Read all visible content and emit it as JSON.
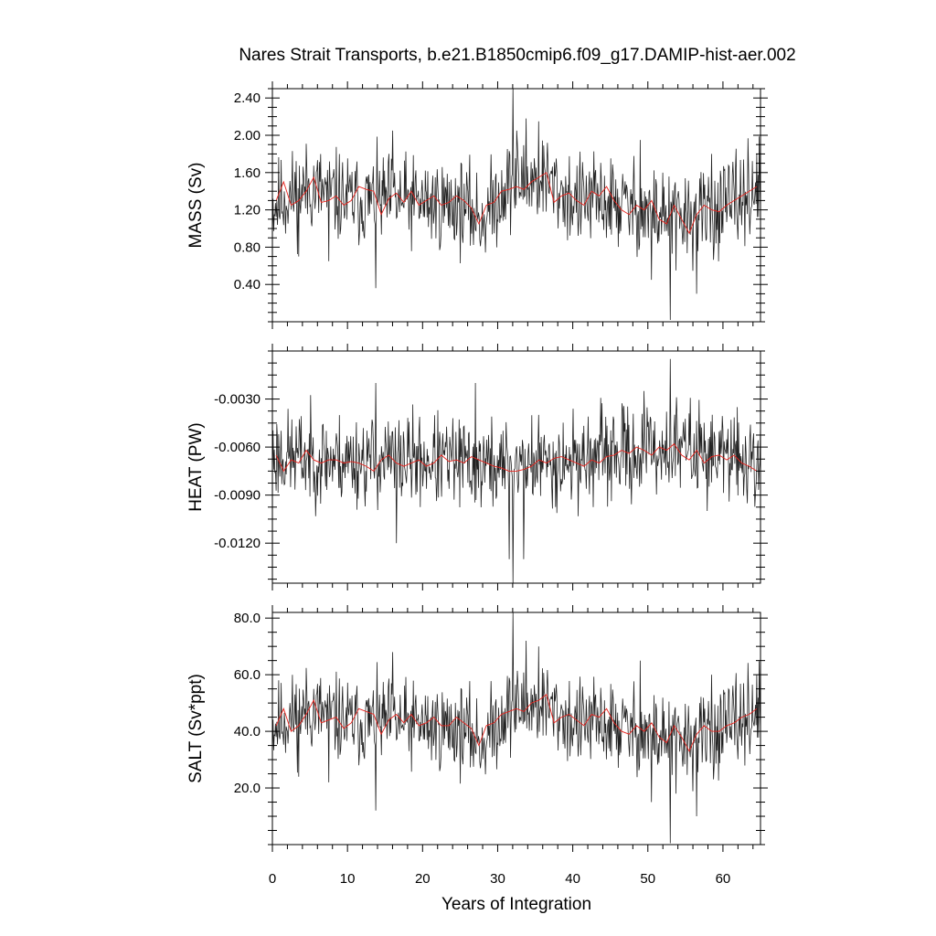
{
  "figure": {
    "title": "Nares Strait Transports, b.e21.B1850cmip6.f09_g17.DAMIP-hist-aer.002"
  },
  "chart_data": [
    {
      "type": "line",
      "title": "Nares Strait Transports, b.e21.B1850cmip6.f09_g17.DAMIP-hist-aer.002",
      "xlabel": "",
      "ylabel": "MASS (Sv)",
      "xlim": [
        0,
        65
      ],
      "ylim": [
        0.0,
        2.5
      ],
      "yticks": [
        0.4,
        0.8,
        1.2,
        1.6,
        2.0,
        2.4
      ],
      "yticklabels": [
        "0.40",
        "0.80",
        "1.20",
        "1.60",
        "2.00",
        "2.40"
      ],
      "monthly": {
        "baseline": [
          [
            0,
            1.25
          ],
          [
            5,
            1.45
          ],
          [
            10,
            1.3
          ],
          [
            15,
            1.3
          ],
          [
            20,
            1.28
          ],
          [
            25,
            1.25
          ],
          [
            28,
            1.1
          ],
          [
            31,
            1.45
          ],
          [
            36,
            1.55
          ],
          [
            40,
            1.3
          ],
          [
            45,
            1.28
          ],
          [
            50,
            1.18
          ],
          [
            55,
            1.1
          ],
          [
            60,
            1.2
          ],
          [
            65,
            1.45
          ]
        ],
        "amplitude": 0.24,
        "spikes": [
          [
            32.0,
            2.52
          ],
          [
            33.8,
            2.18
          ],
          [
            35.5,
            2.15
          ],
          [
            32.5,
            2.05
          ],
          [
            16.0,
            2.05
          ],
          [
            13.8,
            0.36
          ],
          [
            53.0,
            0.02
          ],
          [
            53.7,
            0.55
          ],
          [
            56.5,
            0.3
          ],
          [
            50.5,
            0.45
          ],
          [
            3.5,
            0.7
          ],
          [
            7.5,
            0.65
          ],
          [
            49.0,
            1.95
          ],
          [
            58.5,
            1.8
          ],
          [
            64.5,
            1.8
          ]
        ],
        "seed": 11
      },
      "annual": {
        "name": "",
        "x": [
          0.5,
          1.5,
          2.5,
          3.5,
          4.5,
          5.5,
          6.5,
          7.5,
          8.5,
          9.5,
          10.5,
          11.5,
          12.5,
          13.5,
          14.5,
          15.5,
          16.5,
          17.5,
          18.5,
          19.5,
          20.5,
          21.5,
          22.5,
          23.5,
          24.5,
          25.5,
          26.5,
          27.5,
          28.5,
          29.5,
          30.5,
          31.5,
          32.5,
          33.5,
          34.5,
          35.5,
          36.5,
          37.5,
          38.5,
          39.5,
          40.5,
          41.5,
          42.5,
          43.5,
          44.5,
          45.5,
          46.5,
          47.5,
          48.5,
          49.5,
          50.5,
          51.5,
          52.5,
          53.5,
          54.5,
          55.5,
          56.5,
          57.5,
          58.5,
          59.5,
          60.5,
          61.5,
          62.5,
          63.5,
          64.5
        ],
        "y": [
          1.3,
          1.5,
          1.25,
          1.3,
          1.4,
          1.55,
          1.28,
          1.3,
          1.35,
          1.25,
          1.3,
          1.45,
          1.42,
          1.4,
          1.15,
          1.32,
          1.38,
          1.28,
          1.4,
          1.25,
          1.3,
          1.35,
          1.25,
          1.28,
          1.35,
          1.3,
          1.22,
          1.05,
          1.25,
          1.28,
          1.4,
          1.42,
          1.45,
          1.42,
          1.5,
          1.55,
          1.6,
          1.28,
          1.35,
          1.38,
          1.3,
          1.25,
          1.4,
          1.35,
          1.45,
          1.3,
          1.2,
          1.15,
          1.25,
          1.2,
          1.3,
          1.1,
          1.05,
          1.25,
          1.1,
          0.95,
          1.15,
          1.25,
          1.2,
          1.18,
          1.25,
          1.3,
          1.35,
          1.4,
          1.45
        ],
        "color": "#e8221c"
      }
    },
    {
      "type": "line",
      "xlabel": "",
      "ylabel": "HEAT (PW)",
      "xlim": [
        0,
        65
      ],
      "ylim": [
        -0.0145,
        0.0
      ],
      "yticks": [
        -0.003,
        -0.006,
        -0.009,
        -0.012
      ],
      "yticklabels": [
        "-0.0030",
        "-0.0060",
        "-0.0090",
        "-0.0120"
      ],
      "monthly": {
        "baseline": [
          [
            0,
            -0.0065
          ],
          [
            10,
            -0.0068
          ],
          [
            20,
            -0.0068
          ],
          [
            30,
            -0.0072
          ],
          [
            40,
            -0.0068
          ],
          [
            45,
            -0.0065
          ],
          [
            55,
            -0.006
          ],
          [
            65,
            -0.007
          ]
        ],
        "amplitude": 0.0014,
        "spikes": [
          [
            53.0,
            -0.0005
          ],
          [
            32.0,
            -0.0145
          ],
          [
            33.5,
            -0.013
          ],
          [
            16.5,
            -0.012
          ],
          [
            13.8,
            -0.002
          ],
          [
            31.5,
            -0.013
          ],
          [
            27.0,
            -0.002
          ],
          [
            49.5,
            -0.0025
          ]
        ],
        "seed": 23
      },
      "annual": {
        "name": "",
        "x": [
          0.5,
          1.5,
          2.5,
          3.5,
          4.5,
          5.5,
          6.5,
          7.5,
          8.5,
          9.5,
          10.5,
          11.5,
          12.5,
          13.5,
          14.5,
          15.5,
          16.5,
          17.5,
          18.5,
          19.5,
          20.5,
          21.5,
          22.5,
          23.5,
          24.5,
          25.5,
          26.5,
          27.5,
          28.5,
          29.5,
          30.5,
          31.5,
          32.5,
          33.5,
          34.5,
          35.5,
          36.5,
          37.5,
          38.5,
          39.5,
          40.5,
          41.5,
          42.5,
          43.5,
          44.5,
          45.5,
          46.5,
          47.5,
          48.5,
          49.5,
          50.5,
          51.5,
          52.5,
          53.5,
          54.5,
          55.5,
          56.5,
          57.5,
          58.5,
          59.5,
          60.5,
          61.5,
          62.5,
          63.5,
          64.5
        ],
        "y": [
          -0.0065,
          -0.0075,
          -0.0068,
          -0.007,
          -0.0062,
          -0.0068,
          -0.007,
          -0.0068,
          -0.0068,
          -0.007,
          -0.0069,
          -0.007,
          -0.0072,
          -0.0075,
          -0.0068,
          -0.0065,
          -0.007,
          -0.0072,
          -0.007,
          -0.0068,
          -0.0072,
          -0.007,
          -0.0065,
          -0.0069,
          -0.0068,
          -0.007,
          -0.0066,
          -0.0068,
          -0.007,
          -0.0072,
          -0.0073,
          -0.0075,
          -0.0075,
          -0.0074,
          -0.0072,
          -0.0068,
          -0.007,
          -0.0067,
          -0.0066,
          -0.0068,
          -0.007,
          -0.0072,
          -0.0068,
          -0.007,
          -0.0066,
          -0.0065,
          -0.0062,
          -0.0064,
          -0.006,
          -0.0062,
          -0.0065,
          -0.006,
          -0.0062,
          -0.0058,
          -0.0065,
          -0.0068,
          -0.0062,
          -0.007,
          -0.0066,
          -0.0065,
          -0.0068,
          -0.0065,
          -0.007,
          -0.0072,
          -0.0075
        ],
        "color": "#e8221c"
      }
    },
    {
      "type": "line",
      "xlabel": "Years of Integration",
      "ylabel": "SALT (Sv*ppt)",
      "xlim": [
        0,
        65
      ],
      "ylim": [
        0.0,
        82.0
      ],
      "yticks": [
        20.0,
        40.0,
        60.0,
        80.0
      ],
      "yticklabels": [
        "20.0",
        "40.0",
        "60.0",
        "80.0"
      ],
      "xticks": [
        0,
        10,
        20,
        30,
        40,
        50,
        60
      ],
      "xticklabels": [
        "0",
        "10",
        "20",
        "30",
        "40",
        "50",
        "60"
      ],
      "monthly": {
        "baseline": [
          [
            0,
            42
          ],
          [
            5,
            48
          ],
          [
            10,
            43
          ],
          [
            15,
            43
          ],
          [
            20,
            42
          ],
          [
            25,
            41
          ],
          [
            28,
            36
          ],
          [
            31,
            47
          ],
          [
            36,
            50
          ],
          [
            40,
            43
          ],
          [
            45,
            42
          ],
          [
            50,
            39
          ],
          [
            55,
            36
          ],
          [
            60,
            40
          ],
          [
            65,
            48
          ]
        ],
        "amplitude": 7.5,
        "spikes": [
          [
            32.0,
            82
          ],
          [
            33.8,
            72
          ],
          [
            35.5,
            70
          ],
          [
            16.0,
            68
          ],
          [
            13.8,
            12
          ],
          [
            53.0,
            0.5
          ],
          [
            53.7,
            18
          ],
          [
            56.5,
            10
          ],
          [
            50.5,
            15
          ],
          [
            7.5,
            22
          ],
          [
            3.5,
            24
          ],
          [
            49.0,
            65
          ],
          [
            58.5,
            60
          ],
          [
            64.5,
            60
          ]
        ],
        "seed": 11
      },
      "annual": {
        "name": "",
        "x": [
          0.5,
          1.5,
          2.5,
          3.5,
          4.5,
          5.5,
          6.5,
          7.5,
          8.5,
          9.5,
          10.5,
          11.5,
          12.5,
          13.5,
          14.5,
          15.5,
          16.5,
          17.5,
          18.5,
          19.5,
          20.5,
          21.5,
          22.5,
          23.5,
          24.5,
          25.5,
          26.5,
          27.5,
          28.5,
          29.5,
          30.5,
          31.5,
          32.5,
          33.5,
          34.5,
          35.5,
          36.5,
          37.5,
          38.5,
          39.5,
          40.5,
          41.5,
          42.5,
          43.5,
          44.5,
          45.5,
          46.5,
          47.5,
          48.5,
          49.5,
          50.5,
          51.5,
          52.5,
          53.5,
          54.5,
          55.5,
          56.5,
          57.5,
          58.5,
          59.5,
          60.5,
          61.5,
          62.5,
          63.5,
          64.5
        ],
        "y": [
          42,
          48,
          40,
          42,
          46,
          51,
          43,
          44,
          45,
          41,
          43,
          48,
          47,
          46,
          39,
          44,
          46,
          43,
          46,
          42,
          43,
          45,
          42,
          42,
          45,
          43,
          41,
          35,
          42,
          43,
          46,
          47,
          48,
          47,
          50,
          51,
          53,
          43,
          45,
          46,
          44,
          42,
          46,
          45,
          48,
          43,
          40,
          39,
          42,
          40,
          43,
          38,
          36,
          42,
          38,
          33,
          39,
          42,
          40,
          40,
          42,
          43,
          45,
          46,
          48
        ],
        "color": "#e8221c"
      }
    }
  ]
}
